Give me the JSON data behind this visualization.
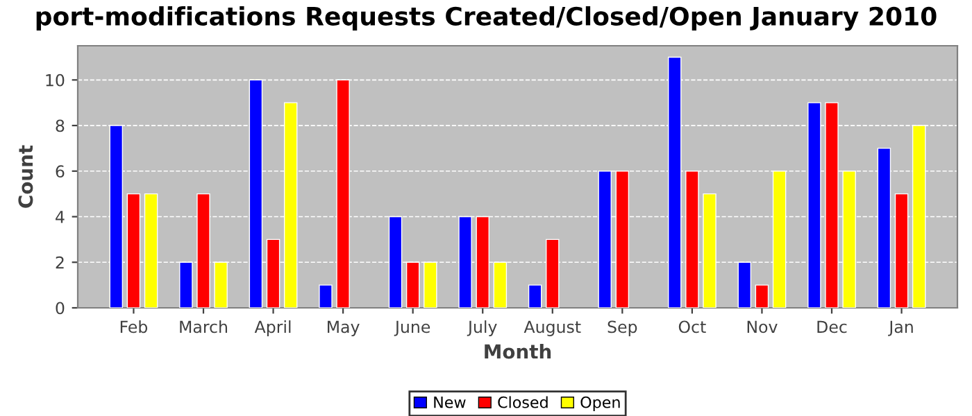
{
  "chart_data": {
    "type": "bar",
    "title": "port-modifications Requests Created/Closed/Open January 2010",
    "xlabel": "Month",
    "ylabel": "Count",
    "categories": [
      "Feb",
      "March",
      "April",
      "May",
      "June",
      "July",
      "August",
      "Sep",
      "Oct",
      "Nov",
      "Dec",
      "Jan"
    ],
    "series": [
      {
        "name": "New",
        "color": "#0000ff",
        "values": [
          8,
          2,
          10,
          1,
          4,
          4,
          1,
          6,
          11,
          2,
          9,
          7
        ]
      },
      {
        "name": "Closed",
        "color": "#ff0000",
        "values": [
          5,
          5,
          3,
          10,
          2,
          4,
          3,
          6,
          6,
          1,
          9,
          5
        ]
      },
      {
        "name": "Open",
        "color": "#ffff00",
        "values": [
          5,
          2,
          9,
          null,
          2,
          2,
          null,
          null,
          5,
          6,
          6,
          8
        ]
      }
    ],
    "ylim": [
      0,
      11.5
    ],
    "yticks": [
      0,
      2,
      4,
      6,
      8,
      10
    ],
    "grid": "y",
    "legend": "bottom"
  }
}
